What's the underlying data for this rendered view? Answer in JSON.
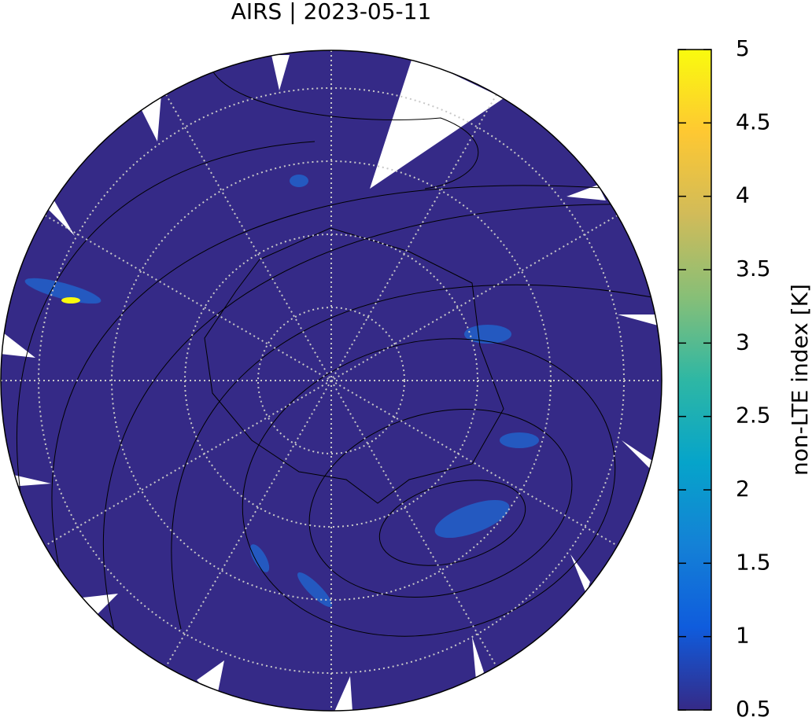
{
  "chart_data": {
    "type": "map",
    "title": "AIRS | 2023-05-11",
    "colorbar": {
      "label": "non-LTE index [K]",
      "lim": [
        0.5,
        5
      ],
      "ticks": [
        0.5,
        1,
        1.5,
        2,
        2.5,
        3,
        3.5,
        4,
        4.5,
        5
      ],
      "colors": [
        "#352a87",
        "#0f5cdd",
        "#1481d6",
        "#06a4ca",
        "#2eb7a4",
        "#87bf77",
        "#d1bb59",
        "#fec832",
        "#f9fb0e"
      ]
    }
  }
}
